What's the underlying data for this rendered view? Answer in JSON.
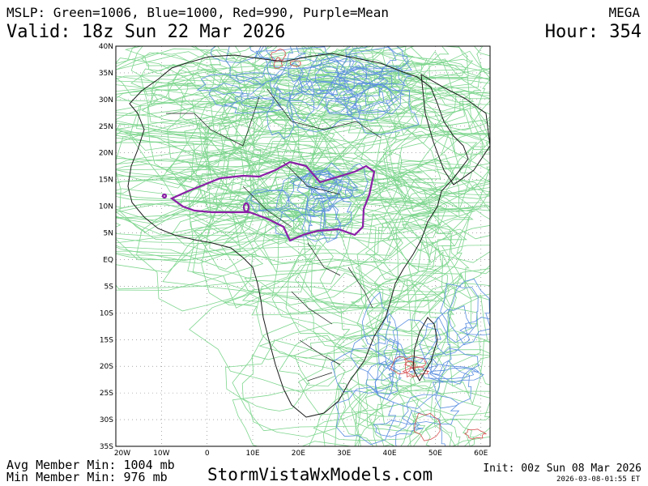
{
  "header": {
    "title": "MSLP: Green=1006, Blue=1000, Red=990, Purple=Mean",
    "model": "MEGA",
    "valid": "Valid: 18z Sun 22 Mar 2026",
    "hour": "Hour: 354"
  },
  "map": {
    "lat_labels": [
      "40N",
      "35N",
      "30N",
      "25N",
      "20N",
      "15N",
      "10N",
      "5N",
      "EQ",
      "5S",
      "10S",
      "15S",
      "20S",
      "25S",
      "30S",
      "35S"
    ],
    "lon_labels": [
      "20W",
      "10W",
      "0",
      "10E",
      "20E",
      "30E",
      "40E",
      "50E",
      "60E"
    ],
    "colors": {
      "green": "#7fd68f",
      "blue": "#5b8fe0",
      "red": "#d65050",
      "purple": "#8a1fa6",
      "coast": "#1a1a1a",
      "grid": "#777777"
    }
  },
  "footer": {
    "avg_min": "Avg Member Min: 1004 mb",
    "min_min": "Min Member Min: 976 mb",
    "site": "StormVistaWxModels.com",
    "init": "Init: 00z Sun 08 Mar 2026",
    "timestamp": "2026-03-08-01:55 ET"
  }
}
